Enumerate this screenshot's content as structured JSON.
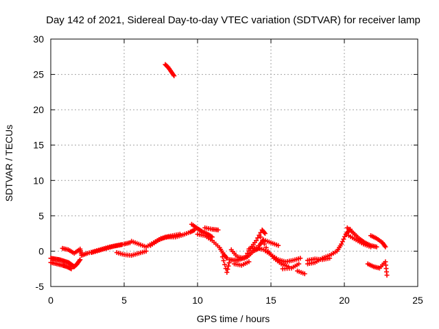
{
  "chart_data": {
    "type": "scatter",
    "title": "Day 142 of 2021, Sidereal Day-to-day VTEC variation (SDTVAR) for receiver lamp",
    "xlabel": "GPS time / hours",
    "ylabel": "SDTVAR / TECUs",
    "xlim": [
      0,
      25
    ],
    "ylim": [
      -5,
      30
    ],
    "xticks": [
      "0",
      "5",
      "10",
      "15",
      "20",
      "25"
    ],
    "yticks": [
      "-5",
      "0",
      "5",
      "10",
      "15",
      "20",
      "25",
      "30"
    ],
    "grid": true,
    "marker": "+",
    "color": "#ff0000",
    "series": [
      {
        "name": "SDTVAR",
        "points": [
          [
            0.0,
            -1.0
          ],
          [
            0.3,
            -1.1
          ],
          [
            0.6,
            -1.2
          ],
          [
            0.9,
            -1.4
          ],
          [
            1.2,
            -1.6
          ],
          [
            1.4,
            -1.9
          ],
          [
            1.6,
            -2.2
          ],
          [
            1.8,
            -1.8
          ],
          [
            2.0,
            -1.2
          ],
          [
            0.0,
            -1.6
          ],
          [
            0.4,
            -1.8
          ],
          [
            0.8,
            -2.0
          ],
          [
            1.1,
            -2.2
          ],
          [
            1.4,
            -2.5
          ],
          [
            0.8,
            0.4
          ],
          [
            1.2,
            0.2
          ],
          [
            1.6,
            -0.3
          ],
          [
            2.0,
            0.3
          ],
          [
            2.1,
            -0.6
          ],
          [
            2.5,
            -0.3
          ],
          [
            3.0,
            0.0
          ],
          [
            3.5,
            0.3
          ],
          [
            4.0,
            0.6
          ],
          [
            4.5,
            0.8
          ],
          [
            5.0,
            1.0
          ],
          [
            5.4,
            1.2
          ],
          [
            2.8,
            -0.2
          ],
          [
            3.3,
            0.1
          ],
          [
            3.8,
            0.4
          ],
          [
            4.3,
            0.7
          ],
          [
            4.8,
            0.9
          ],
          [
            4.5,
            -0.2
          ],
          [
            5.0,
            -0.5
          ],
          [
            5.5,
            -0.6
          ],
          [
            6.0,
            -0.3
          ],
          [
            6.5,
            0.0
          ],
          [
            5.5,
            1.4
          ],
          [
            6.0,
            1.0
          ],
          [
            6.5,
            0.6
          ],
          [
            7.0,
            1.2
          ],
          [
            7.5,
            1.8
          ],
          [
            8.0,
            2.0
          ],
          [
            8.5,
            2.0
          ],
          [
            9.0,
            2.3
          ],
          [
            9.5,
            2.7
          ],
          [
            9.8,
            3.0
          ],
          [
            6.8,
            0.8
          ],
          [
            7.3,
            1.5
          ],
          [
            7.8,
            2.0
          ],
          [
            8.3,
            2.2
          ],
          [
            8.8,
            2.4
          ],
          [
            7.8,
            26.4
          ],
          [
            8.0,
            26.0
          ],
          [
            8.2,
            25.4
          ],
          [
            8.4,
            24.8
          ],
          [
            9.6,
            3.8
          ],
          [
            10.0,
            3.2
          ],
          [
            10.3,
            2.8
          ],
          [
            10.7,
            2.4
          ],
          [
            11.0,
            2.0
          ],
          [
            10.5,
            3.3
          ],
          [
            11.0,
            3.1
          ],
          [
            11.4,
            3.0
          ],
          [
            10.0,
            2.4
          ],
          [
            10.5,
            2.2
          ],
          [
            11.0,
            1.5
          ],
          [
            11.5,
            0.5
          ],
          [
            11.8,
            -0.5
          ],
          [
            12.0,
            -1.0
          ],
          [
            11.7,
            -0.8
          ],
          [
            12.0,
            -3.0
          ],
          [
            12.2,
            -1.2
          ],
          [
            12.6,
            -1.3
          ],
          [
            13.0,
            -1.1
          ],
          [
            13.4,
            -0.8
          ],
          [
            13.8,
            0.0
          ],
          [
            14.2,
            0.4
          ],
          [
            12.5,
            -1.8
          ],
          [
            13.0,
            -2.0
          ],
          [
            13.5,
            -1.5
          ],
          [
            12.3,
            0.2
          ],
          [
            12.7,
            -0.8
          ],
          [
            13.2,
            -1.0
          ],
          [
            13.6,
            0.4
          ],
          [
            14.0,
            1.5
          ],
          [
            14.4,
            3.0
          ],
          [
            14.6,
            2.5
          ],
          [
            14.2,
            0.8
          ],
          [
            14.5,
            1.6
          ],
          [
            15.0,
            1.2
          ],
          [
            15.5,
            0.8
          ],
          [
            13.5,
            0.3
          ],
          [
            14.0,
            0.5
          ],
          [
            14.5,
            0.2
          ],
          [
            15.0,
            -0.5
          ],
          [
            15.5,
            -1.2
          ],
          [
            16.0,
            -1.5
          ],
          [
            16.5,
            -1.3
          ],
          [
            17.0,
            -1.0
          ],
          [
            14.3,
            2.0
          ],
          [
            14.8,
            0.0
          ],
          [
            15.2,
            -1.0
          ],
          [
            15.7,
            -1.8
          ],
          [
            16.2,
            -2.2
          ],
          [
            16.8,
            -2.8
          ],
          [
            17.3,
            -3.2
          ],
          [
            15.8,
            -2.5
          ],
          [
            16.4,
            -2.4
          ],
          [
            16.9,
            -1.8
          ],
          [
            17.5,
            -1.3
          ],
          [
            18.0,
            -1.1
          ],
          [
            18.5,
            -1.2
          ],
          [
            19.0,
            -1.0
          ],
          [
            17.5,
            -1.8
          ],
          [
            18.0,
            -1.6
          ],
          [
            18.5,
            -1.0
          ],
          [
            19.0,
            -0.6
          ],
          [
            19.5,
            0.0
          ],
          [
            19.8,
            1.0
          ],
          [
            20.1,
            2.4
          ],
          [
            20.4,
            3.1
          ],
          [
            20.2,
            3.3
          ],
          [
            20.6,
            2.6
          ],
          [
            21.0,
            1.8
          ],
          [
            21.4,
            1.2
          ],
          [
            21.8,
            0.8
          ],
          [
            22.2,
            0.6
          ],
          [
            20.3,
            2.2
          ],
          [
            20.8,
            1.6
          ],
          [
            21.3,
            1.0
          ],
          [
            21.8,
            0.6
          ],
          [
            21.8,
            2.2
          ],
          [
            22.2,
            1.8
          ],
          [
            22.6,
            1.2
          ],
          [
            22.8,
            0.6
          ],
          [
            21.6,
            -1.8
          ],
          [
            22.0,
            -2.2
          ],
          [
            22.4,
            -2.4
          ],
          [
            22.8,
            -1.5
          ],
          [
            22.9,
            -3.4
          ]
        ]
      }
    ]
  }
}
